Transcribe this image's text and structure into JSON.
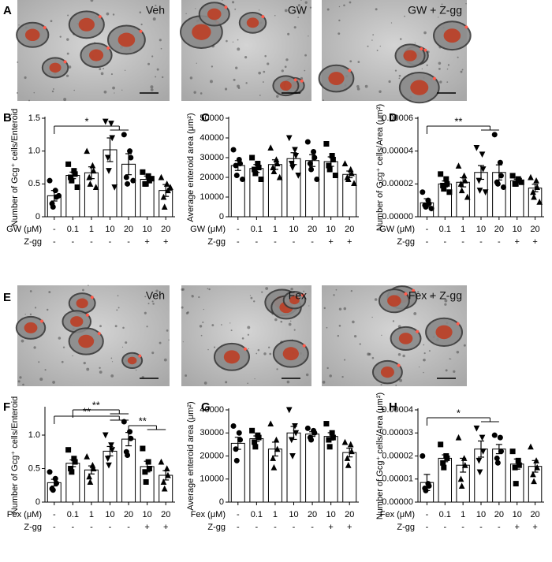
{
  "image_panels": [
    {
      "letter": "A",
      "labels": [
        "Veh",
        "GW",
        "GW + Z-gg"
      ]
    },
    {
      "letter": "E",
      "labels": [
        "Veh",
        "Fex",
        "Fex + Z-gg"
      ]
    }
  ],
  "chart_data": [
    {
      "type": "bar",
      "panel": "B",
      "ylabel": "Number of Gcg⁺ cells/Enteroid",
      "color": "#000000",
      "category_labels": [
        "GW (μM)",
        "Z-gg"
      ],
      "categories": [
        "-",
        "0.1",
        "1",
        "10",
        "20",
        "10",
        "20"
      ],
      "categories2": [
        "-",
        "-",
        "-",
        "-",
        "-",
        "+",
        "+"
      ],
      "markers": [
        "circle",
        "square",
        "triangle",
        "triangle-down",
        "circle",
        "square",
        "triangle"
      ],
      "values": [
        0.32,
        0.63,
        0.67,
        1.02,
        0.8,
        0.57,
        0.4
      ],
      "errors": [
        0.08,
        0.05,
        0.09,
        0.18,
        0.16,
        0.05,
        0.09
      ],
      "points": [
        [
          0.55,
          0.4,
          0.3,
          0.2,
          0.15,
          0.32
        ],
        [
          0.8,
          0.7,
          0.65,
          0.6,
          0.55,
          0.45
        ],
        [
          1.0,
          0.78,
          0.7,
          0.6,
          0.5,
          0.45
        ],
        [
          1.45,
          1.42,
          1.2,
          0.9,
          0.7,
          0.45
        ],
        [
          1.25,
          1.0,
          0.9,
          0.6,
          0.5,
          0.55
        ],
        [
          0.68,
          0.62,
          0.55,
          0.5,
          0.5,
          0.58
        ],
        [
          0.6,
          0.5,
          0.4,
          0.3,
          0.15,
          0.45
        ]
      ],
      "ylim": [
        0,
        1.5
      ],
      "yticks": [
        0,
        0.5,
        {
          "value": 1,
          "label": "1.0"
        },
        1.5
      ],
      "brackets": [
        {
          "label": "*",
          "from": [
            0
          ],
          "to": [
            3,
            4
          ]
        }
      ]
    },
    {
      "type": "bar",
      "panel": "C",
      "ylabel": "Average enteroid area (μm²)",
      "color": "#000000",
      "category_labels": [
        "GW (μM)",
        "Z-gg"
      ],
      "categories": [
        "-",
        "0.1",
        "1",
        "10",
        "20",
        "10",
        "20"
      ],
      "categories2": [
        "-",
        "-",
        "-",
        "-",
        "-",
        "+",
        "+"
      ],
      "markers": [
        "circle",
        "square",
        "triangle",
        "triangle-down",
        "circle",
        "square",
        "triangle"
      ],
      "values": [
        26000,
        24500,
        26500,
        29500,
        28500,
        28000,
        21500
      ],
      "errors": [
        2500,
        2000,
        2400,
        3000,
        3000,
        2400,
        1700
      ],
      "points": [
        [
          34000,
          29000,
          27000,
          26000,
          21000,
          19000
        ],
        [
          30000,
          27000,
          25000,
          24000,
          22000,
          19000
        ],
        [
          35000,
          29000,
          27000,
          25000,
          23000,
          20000
        ],
        [
          40000,
          34000,
          31000,
          27000,
          25000,
          21000
        ],
        [
          38000,
          33000,
          30000,
          27000,
          24000,
          19000
        ],
        [
          37000,
          31000,
          29000,
          26000,
          24000,
          21000
        ],
        [
          27000,
          24000,
          22000,
          20000,
          19000,
          17000
        ]
      ],
      "ylim": [
        0,
        50000
      ],
      "yticks": [
        0,
        10000,
        20000,
        30000,
        40000,
        50000
      ],
      "brackets": []
    },
    {
      "type": "bar",
      "panel": "D",
      "ylabel": "Number of Gcg⁺ cells/Area (μm²)",
      "color": "#000000",
      "category_labels": [
        "GW (μM)",
        "Z-gg"
      ],
      "categories": [
        "-",
        "0.1",
        "1",
        "10",
        "20",
        "10",
        "20"
      ],
      "categories2": [
        "-",
        "-",
        "-",
        "-",
        "-",
        "+",
        "+"
      ],
      "markers": [
        "circle",
        "square",
        "triangle",
        "triangle-down",
        "circle",
        "square",
        "triangle"
      ],
      "values": [
        8.5e-06,
        2e-05,
        2.1e-05,
        2.7e-05,
        2.7e-05,
        2.2e-05,
        1.75e-05
      ],
      "errors": [
        2.5e-06,
        1.8e-06,
        2.8e-06,
        4.2e-06,
        4.6e-06,
        9e-07,
        2.3e-06
      ],
      "points": [
        [
          1.5e-05,
          1e-05,
          8e-06,
          7e-06,
          6e-06,
          5e-06
        ],
        [
          2.6e-05,
          2.3e-05,
          2e-05,
          1.9e-05,
          1.7e-05,
          1.5e-05
        ],
        [
          3.1e-05,
          2.5e-05,
          2.2e-05,
          2e-05,
          1.6e-05,
          1.2e-05
        ],
        [
          4.2e-05,
          3.8e-05,
          2.9e-05,
          2.2e-05,
          1.6e-05,
          1.5e-05
        ],
        [
          5e-05,
          3.3e-05,
          2.5e-05,
          2.1e-05,
          2e-05,
          1.8e-05
        ],
        [
          2.5e-05,
          2.3e-05,
          2.2e-05,
          2e-05,
          2e-05,
          2.1e-05
        ],
        [
          2.4e-05,
          2.2e-05,
          1.8e-05,
          1.5e-05,
          1.2e-05,
          9e-06
        ]
      ],
      "ylim": [
        0,
        6e-05
      ],
      "yticks": [
        {
          "value": 0,
          "label": "0.00000"
        },
        {
          "value": 2e-05,
          "label": "0.00002"
        },
        {
          "value": 4e-05,
          "label": "0.00004"
        },
        {
          "value": 6e-05,
          "label": "0.00006"
        }
      ],
      "brackets": [
        {
          "label": "**",
          "from": [
            0
          ],
          "to": [
            3,
            4
          ]
        }
      ]
    },
    {
      "type": "bar",
      "panel": "F",
      "ylabel": "Number of Gcg⁺ cells/Enteroid",
      "color": "#000000",
      "category_labels": [
        "Fex (μM)",
        "Z-gg"
      ],
      "categories": [
        "-",
        "0.1",
        "1",
        "10",
        "20",
        "10",
        "20"
      ],
      "categories2": [
        "-",
        "-",
        "-",
        "-",
        "-",
        "+",
        "+"
      ],
      "markers": [
        "circle",
        "square",
        "triangle",
        "triangle-down",
        "circle",
        "square",
        "triangle"
      ],
      "values": [
        0.29,
        0.58,
        0.48,
        0.76,
        0.94,
        0.53,
        0.4
      ],
      "errors": [
        0.05,
        0.05,
        0.06,
        0.07,
        0.1,
        0.08,
        0.07
      ],
      "points": [
        [
          0.45,
          0.35,
          0.28,
          0.2,
          0.18
        ],
        [
          0.78,
          0.65,
          0.6,
          0.5,
          0.45
        ],
        [
          0.68,
          0.55,
          0.5,
          0.38,
          0.3
        ],
        [
          1.0,
          0.85,
          0.78,
          0.65,
          0.55
        ],
        [
          1.2,
          1.05,
          0.95,
          0.75,
          0.7
        ],
        [
          0.8,
          0.6,
          0.5,
          0.45,
          0.3
        ],
        [
          0.6,
          0.5,
          0.4,
          0.3,
          0.2
        ]
      ],
      "ylim": [
        0,
        1.4
      ],
      "yticks": [
        0,
        0.5,
        {
          "value": 1,
          "label": "1.0"
        }
      ],
      "brackets": [
        {
          "label": "**",
          "from": [
            0
          ],
          "to": [
            3,
            4
          ]
        },
        {
          "label": "**",
          "from": [
            4
          ],
          "to": [
            5,
            6
          ]
        },
        {
          "label": "**",
          "from": [
            1
          ],
          "to": [
            3,
            4
          ]
        }
      ]
    },
    {
      "type": "bar",
      "panel": "G",
      "ylabel": "Average enteroid area (μm²)",
      "color": "#000000",
      "category_labels": [
        "Fex (μM)",
        "Z-gg"
      ],
      "categories": [
        "-",
        "0.1",
        "1",
        "10",
        "20",
        "10",
        "20"
      ],
      "categories2": [
        "-",
        "-",
        "-",
        "-",
        "-",
        "+",
        "+"
      ],
      "markers": [
        "circle",
        "square",
        "triangle",
        "triangle-down",
        "circle",
        "square",
        "triangle"
      ],
      "values": [
        25500,
        27500,
        23000,
        30000,
        29500,
        28500,
        21500
      ],
      "errors": [
        2600,
        1200,
        3000,
        2800,
        1000,
        1600,
        1900
      ],
      "points": [
        [
          33000,
          30000,
          27000,
          23000,
          18000
        ],
        [
          31000,
          29000,
          28000,
          26000,
          24000
        ],
        [
          34000,
          27000,
          23000,
          19000,
          15000
        ],
        [
          40000,
          33000,
          30000,
          27000,
          20000
        ],
        [
          32000,
          31000,
          30000,
          28000,
          27000
        ],
        [
          34000,
          30000,
          28000,
          27000,
          24000
        ],
        [
          26000,
          25000,
          22000,
          19000,
          16000
        ]
      ],
      "ylim": [
        0,
        40000
      ],
      "yticks": [
        0,
        10000,
        20000,
        30000,
        40000
      ],
      "brackets": []
    },
    {
      "type": "bar",
      "panel": "H",
      "ylabel": "Number of Gcg⁺ cells/Area (μm²)",
      "color": "#000000",
      "category_labels": [
        "Fex (μM)",
        "Z-gg"
      ],
      "categories": [
        "-",
        "0.1",
        "1",
        "10",
        "20",
        "10",
        "20"
      ],
      "categories2": [
        "-",
        "-",
        "-",
        "-",
        "-",
        "+",
        "+"
      ],
      "markers": [
        "circle",
        "square",
        "triangle",
        "triangle-down",
        "circle",
        "square",
        "triangle"
      ],
      "values": [
        8.5e-06,
        1.9e-05,
        1.6e-05,
        2.3e-05,
        2.3e-05,
        1.65e-05,
        1.55e-05
      ],
      "errors": [
        3.5e-06,
        1.5e-06,
        3e-06,
        3.5e-06,
        2e-06,
        2.2e-06,
        2.5e-06
      ],
      "points": [
        [
          2e-05,
          8e-06,
          7e-06,
          6e-06,
          5e-06
        ],
        [
          2.5e-05,
          2e-05,
          1.9e-05,
          1.7e-05,
          1.5e-05
        ],
        [
          2.8e-05,
          1.9e-05,
          1.6e-05,
          1e-05,
          7e-06
        ],
        [
          3.2e-05,
          2.8e-05,
          2.2e-05,
          1.8e-05,
          1.3e-05
        ],
        [
          2.9e-05,
          2.8e-05,
          2.2e-05,
          1.9e-05,
          1.7e-05
        ],
        [
          2.2e-05,
          1.8e-05,
          1.6e-05,
          1.5e-05,
          8e-06
        ],
        [
          2.4e-05,
          1.8e-05,
          1.5e-05,
          1.2e-05,
          9e-06
        ]
      ],
      "ylim": [
        0,
        4e-05
      ],
      "yticks": [
        {
          "value": 0,
          "label": "0.00000"
        },
        {
          "value": 1e-05,
          "label": "0.00001"
        },
        {
          "value": 2e-05,
          "label": "0.00002"
        },
        {
          "value": 3e-05,
          "label": "0.00003"
        },
        {
          "value": 4e-05,
          "label": "0.00004"
        }
      ],
      "brackets": [
        {
          "label": "*",
          "from": [
            0
          ],
          "to": [
            3,
            4
          ]
        }
      ]
    }
  ]
}
